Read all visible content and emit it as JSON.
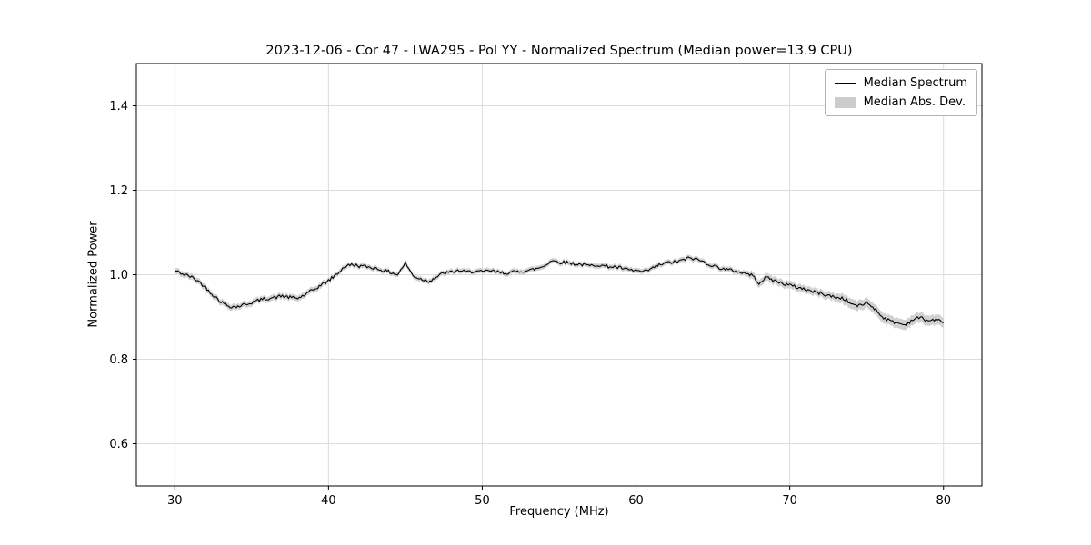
{
  "chart_data": {
    "type": "line",
    "title": "2023-12-06 - Cor 47 - LWA295 - Pol YY - Normalized Spectrum (Median power=13.9 CPU)",
    "xlabel": "Frequency (MHz)",
    "ylabel": "Normalized Power",
    "xlim": [
      27.5,
      82.5
    ],
    "ylim": [
      0.5,
      1.5
    ],
    "xticks": [
      30,
      40,
      50,
      60,
      70,
      80
    ],
    "yticks": [
      0.6,
      0.8,
      1.0,
      1.2,
      1.4
    ],
    "grid": true,
    "noise_amplitude": 0.004,
    "colors": {
      "line": "#000000",
      "band": "#cccccc",
      "grid": "#dcdcdc",
      "spine": "#000000",
      "tick_text": "#000000",
      "background": "#ffffff"
    },
    "legend": {
      "position": "upper right",
      "entries": [
        {
          "label": "Median Spectrum",
          "type": "line",
          "color": "#000000"
        },
        {
          "label": "Median Abs. Dev.",
          "type": "patch",
          "color": "#cccccc"
        }
      ]
    },
    "series": [
      {
        "name": "Median Spectrum",
        "x": [
          30,
          30.5,
          31,
          31.5,
          32,
          32.5,
          33,
          33.5,
          34,
          34.5,
          35,
          35.5,
          36,
          36.5,
          37,
          37.5,
          38,
          38.5,
          39,
          39.5,
          40,
          40.5,
          41,
          41.5,
          42,
          42.5,
          43,
          43.5,
          44,
          44.5,
          45,
          45.5,
          46,
          46.5,
          47,
          47.5,
          48,
          48.5,
          49,
          49.5,
          50,
          50.5,
          51,
          51.5,
          52,
          52.5,
          53,
          53.5,
          54,
          54.5,
          55,
          55.5,
          56,
          56.5,
          57,
          57.5,
          58,
          58.5,
          59,
          59.5,
          60,
          60.5,
          61,
          61.5,
          62,
          62.5,
          63,
          63.5,
          64,
          64.5,
          65,
          65.5,
          66,
          66.5,
          67,
          67.5,
          68,
          68.5,
          69,
          69.5,
          70,
          70.5,
          71,
          71.5,
          72,
          72.5,
          73,
          73.5,
          74,
          74.5,
          75,
          75.5,
          76,
          76.5,
          77,
          77.5,
          78,
          78.5,
          79,
          79.5,
          80
        ],
        "y": [
          1.01,
          1.002,
          0.996,
          0.986,
          0.97,
          0.952,
          0.936,
          0.926,
          0.924,
          0.929,
          0.934,
          0.94,
          0.944,
          0.946,
          0.95,
          0.946,
          0.944,
          0.953,
          0.964,
          0.975,
          0.986,
          1.0,
          1.018,
          1.024,
          1.021,
          1.019,
          1.016,
          1.011,
          1.006,
          1.0,
          1.028,
          0.997,
          0.99,
          0.985,
          0.994,
          1.004,
          1.006,
          1.01,
          1.006,
          1.009,
          1.006,
          1.01,
          1.006,
          1.004,
          1.006,
          1.009,
          1.01,
          1.014,
          1.02,
          1.034,
          1.03,
          1.029,
          1.026,
          1.024,
          1.021,
          1.024,
          1.02,
          1.019,
          1.016,
          1.011,
          1.01,
          1.006,
          1.014,
          1.023,
          1.028,
          1.03,
          1.034,
          1.04,
          1.036,
          1.029,
          1.021,
          1.016,
          1.011,
          1.009,
          1.004,
          1.0,
          0.981,
          0.994,
          0.986,
          0.98,
          0.975,
          0.97,
          0.966,
          0.96,
          0.956,
          0.951,
          0.946,
          0.944,
          0.931,
          0.926,
          0.934,
          0.921,
          0.901,
          0.891,
          0.886,
          0.881,
          0.894,
          0.899,
          0.891,
          0.894,
          0.886
        ]
      },
      {
        "name": "Median Abs. Dev.",
        "band_halfwidth": [
          0.007,
          0.007,
          0.007,
          0.007,
          0.007,
          0.007,
          0.007,
          0.007,
          0.007,
          0.007,
          0.007,
          0.007,
          0.007,
          0.007,
          0.007,
          0.007,
          0.007,
          0.007,
          0.007,
          0.007,
          0.006,
          0.006,
          0.006,
          0.006,
          0.006,
          0.006,
          0.006,
          0.006,
          0.006,
          0.006,
          0.006,
          0.006,
          0.006,
          0.006,
          0.006,
          0.006,
          0.006,
          0.006,
          0.006,
          0.006,
          0.006,
          0.006,
          0.006,
          0.006,
          0.006,
          0.006,
          0.006,
          0.006,
          0.006,
          0.006,
          0.006,
          0.006,
          0.006,
          0.006,
          0.006,
          0.006,
          0.006,
          0.006,
          0.006,
          0.006,
          0.006,
          0.006,
          0.006,
          0.006,
          0.006,
          0.006,
          0.006,
          0.006,
          0.006,
          0.006,
          0.006,
          0.006,
          0.006,
          0.006,
          0.006,
          0.009,
          0.009,
          0.009,
          0.009,
          0.009,
          0.009,
          0.009,
          0.009,
          0.009,
          0.009,
          0.009,
          0.009,
          0.012,
          0.012,
          0.012,
          0.012,
          0.012,
          0.012,
          0.012,
          0.012,
          0.012,
          0.012,
          0.012,
          0.012,
          0.012,
          0.012
        ]
      }
    ]
  }
}
